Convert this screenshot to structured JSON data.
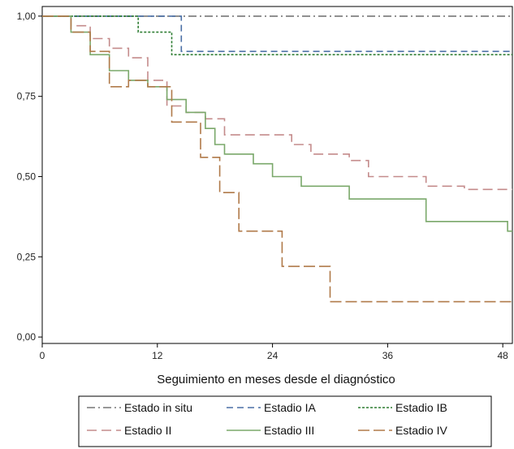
{
  "chart_data": {
    "type": "line",
    "title": "",
    "xlabel": "Seguimiento en meses desde el diagnóstico",
    "ylabel": "",
    "xlim": [
      0,
      49
    ],
    "ylim": [
      -0.02,
      1.03
    ],
    "xticks": [
      0,
      12,
      24,
      36,
      48
    ],
    "xtick_labels": [
      "0",
      "12",
      "24",
      "36",
      "48"
    ],
    "yticks": [
      0,
      0.25,
      0.5,
      0.75,
      1.0
    ],
    "ytick_labels": [
      "0,00",
      "0,25",
      "0,50",
      "0,75",
      "1,00"
    ],
    "step": true,
    "grid": false,
    "legend_position": "bottom",
    "series": [
      {
        "name": "Estado in situ",
        "color": "#777777",
        "dash": "10,4,2,4",
        "x": [
          0,
          49
        ],
        "y": [
          1.0,
          1.0
        ]
      },
      {
        "name": "Estadio IA",
        "color": "#4a6fa5",
        "dash": "8,5",
        "x": [
          0,
          14.5,
          14.5,
          49
        ],
        "y": [
          1.0,
          1.0,
          0.89,
          0.89
        ]
      },
      {
        "name": "Estadio IB",
        "color": "#2e7d32",
        "dash": "3,2",
        "x": [
          0,
          10,
          10,
          13.5,
          13.5,
          49
        ],
        "y": [
          1.0,
          1.0,
          0.95,
          0.95,
          0.88,
          0.88
        ]
      },
      {
        "name": "Estadio II",
        "color": "#c48b8b",
        "dash": "12,6",
        "x": [
          0,
          3,
          3,
          5,
          5,
          7,
          7,
          9,
          9,
          11,
          11,
          13,
          13,
          15,
          15,
          17,
          17,
          19,
          19,
          26,
          26,
          28,
          28,
          32,
          32,
          34,
          34,
          40,
          40,
          44,
          44,
          49
        ],
        "y": [
          1.0,
          1.0,
          0.97,
          0.97,
          0.93,
          0.93,
          0.9,
          0.9,
          0.87,
          0.87,
          0.8,
          0.8,
          0.72,
          0.72,
          0.7,
          0.7,
          0.68,
          0.68,
          0.63,
          0.63,
          0.6,
          0.6,
          0.57,
          0.57,
          0.55,
          0.55,
          0.5,
          0.5,
          0.47,
          0.47,
          0.46,
          0.46
        ]
      },
      {
        "name": "Estadio III",
        "color": "#7aa86a",
        "dash": "",
        "x": [
          0,
          3,
          3,
          5,
          5,
          7,
          7,
          9,
          9,
          11,
          11,
          13,
          13,
          15,
          15,
          17,
          17,
          18,
          18,
          19,
          19,
          22,
          22,
          24,
          24,
          27,
          27,
          32,
          32,
          40,
          40,
          48.5,
          48.5,
          49
        ],
        "y": [
          1.0,
          1.0,
          0.95,
          0.95,
          0.88,
          0.88,
          0.83,
          0.83,
          0.8,
          0.8,
          0.78,
          0.78,
          0.74,
          0.74,
          0.7,
          0.7,
          0.65,
          0.65,
          0.6,
          0.6,
          0.57,
          0.57,
          0.54,
          0.54,
          0.5,
          0.5,
          0.47,
          0.47,
          0.43,
          0.43,
          0.36,
          0.36,
          0.33,
          0.33
        ]
      },
      {
        "name": "Estadio IV",
        "color": "#b07a4a",
        "dash": "14,5",
        "x": [
          0,
          3,
          3,
          5,
          5,
          7,
          7,
          9,
          9,
          11,
          11,
          13.5,
          13.5,
          16.5,
          16.5,
          18.5,
          18.5,
          20.5,
          20.5,
          25,
          25,
          30,
          30,
          49
        ],
        "y": [
          1.0,
          1.0,
          0.95,
          0.95,
          0.89,
          0.89,
          0.78,
          0.78,
          0.8,
          0.8,
          0.78,
          0.78,
          0.67,
          0.67,
          0.56,
          0.56,
          0.45,
          0.45,
          0.33,
          0.33,
          0.22,
          0.22,
          0.11,
          0.11
        ]
      }
    ]
  }
}
